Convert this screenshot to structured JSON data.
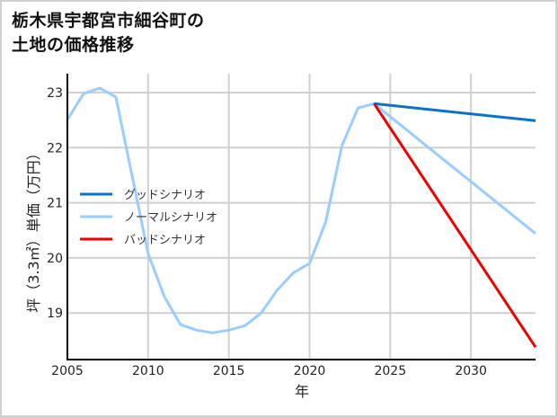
{
  "title": {
    "line1": "栃木県宇都宮市細谷町の",
    "line2": "土地の価格推移"
  },
  "colors": {
    "good": "#0a72c8",
    "normal": "#99ccff",
    "bad": "#ee0000",
    "grid": "#d0d0d0",
    "axis": "#000000"
  },
  "chart_data": {
    "type": "line",
    "title": "栃木県宇都宮市細谷町の土地の価格推移",
    "xlabel": "年",
    "ylabel": "坪（3.3㎡）単価（万円）",
    "xlim": [
      2005,
      2034
    ],
    "ylim": [
      18.2,
      23.35
    ],
    "xticks": [
      2005,
      2010,
      2015,
      2020,
      2025,
      2030
    ],
    "yticks": [
      19,
      20,
      21,
      22,
      23
    ],
    "grid": true,
    "legend_position": "center-left",
    "series": [
      {
        "name": "ノーマルシナリオ",
        "key": "normal",
        "x": [
          2005,
          2006,
          2007,
          2008,
          2009,
          2010,
          2011,
          2012,
          2013,
          2014,
          2015,
          2016,
          2017,
          2018,
          2019,
          2020,
          2021,
          2022,
          2023,
          2024,
          2034
        ],
        "values": [
          22.51,
          22.98,
          23.08,
          22.92,
          21.5,
          20.08,
          19.3,
          18.79,
          18.69,
          18.64,
          18.69,
          18.77,
          19.0,
          19.42,
          19.73,
          19.9,
          20.65,
          22.03,
          22.72,
          22.8,
          20.44
        ]
      },
      {
        "name": "グッドシナリオ",
        "key": "good",
        "x": [
          2024,
          2034
        ],
        "values": [
          22.8,
          22.49
        ]
      },
      {
        "name": "バッドシナリオ",
        "key": "bad",
        "x": [
          2024,
          2034
        ],
        "values": [
          22.8,
          18.38
        ]
      }
    ]
  },
  "legend": [
    {
      "label": "グッドシナリオ",
      "key": "good"
    },
    {
      "label": "ノーマルシナリオ",
      "key": "normal"
    },
    {
      "label": "バッドシナリオ",
      "key": "bad"
    }
  ]
}
